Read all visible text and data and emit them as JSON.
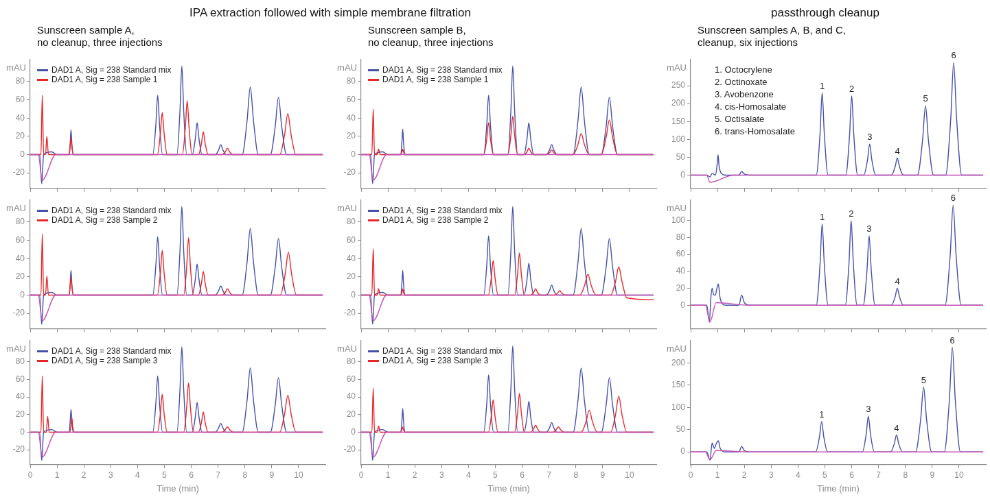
{
  "chart_data": [
    {
      "type": "line",
      "title": "IPA extraction followed with simple membrane filtration",
      "subtitle": "Sunscreen sample A,\nno cleanup, three injections",
      "ylabel": "mAU",
      "xlim": [
        0,
        11
      ],
      "xticks": [
        0,
        1,
        2,
        3,
        4,
        5,
        6,
        7,
        8,
        9,
        10
      ],
      "ylim": [
        -37,
        104
      ],
      "yticks": [
        -20,
        0,
        20,
        40,
        60,
        80
      ],
      "tick_labels": "y",
      "legend": "top left",
      "series": [
        {
          "name": "DAD1 A, Sig = 238 Standard mix",
          "color": "#4450a8",
          "x": [
            0,
            0.35,
            0.43,
            0.5,
            0.8,
            1.0,
            1.45,
            1.49,
            1.52,
            1.55,
            1.6,
            4.57,
            4.68,
            4.75,
            4.82,
            4.93,
            5.47,
            5.58,
            5.65,
            5.72,
            5.83,
            6.04,
            6.15,
            6.22,
            6.29,
            6.4,
            6.9,
            7.02,
            7.1,
            7.18,
            7.3,
            7.9,
            8.08,
            8.2,
            8.32,
            8.5,
            8.95,
            9.13,
            9.25,
            9.37,
            9.55,
            10.9
          ],
          "values": [
            0,
            0,
            -32,
            0,
            3,
            0,
            0,
            13,
            27,
            13,
            0,
            0,
            32,
            65,
            32,
            0,
            0,
            48,
            97,
            48,
            0,
            0,
            17,
            35,
            17,
            0,
            0,
            5,
            11,
            5,
            0,
            0,
            37,
            74,
            37,
            0,
            0,
            31,
            63,
            31,
            0,
            0
          ]
        },
        {
          "name": "DAD1 A, Sig = 238 Sample 1",
          "color": "#e8262a",
          "x": [
            0,
            0.4,
            0.45,
            0.5,
            0.57,
            0.62,
            0.68,
            0.8,
            1.45,
            1.49,
            1.52,
            1.55,
            1.6,
            4.74,
            4.85,
            4.92,
            4.99,
            5.1,
            5.67,
            5.78,
            5.85,
            5.92,
            6.03,
            6.27,
            6.38,
            6.45,
            6.52,
            6.63,
            7.15,
            7.27,
            7.35,
            7.43,
            7.55,
            9.3,
            9.48,
            9.6,
            9.72,
            9.9,
            10.9
          ],
          "values": [
            0,
            0,
            65,
            0,
            0,
            20,
            0,
            0,
            0,
            9,
            19,
            9,
            0,
            0,
            23,
            46,
            23,
            0,
            0,
            29,
            59,
            29,
            0,
            0,
            12,
            25,
            12,
            0,
            0,
            3,
            7,
            3,
            0,
            0,
            22,
            45,
            22,
            0,
            0
          ]
        },
        {
          "color": "#c850b4",
          "x": [
            0,
            0.3,
            0.45,
            0.95,
            10.9
          ],
          "values": [
            0,
            0,
            -28,
            0,
            0
          ]
        }
      ]
    },
    {
      "type": "line",
      "subtitle": "Sunscreen sample B,\nno cleanup, three injections",
      "ylabel": "mAU",
      "xlim": [
        0,
        11
      ],
      "xticks": [
        0,
        1,
        2,
        3,
        4,
        5,
        6,
        7,
        8,
        9,
        10
      ],
      "ylim": [
        -37,
        104
      ],
      "yticks": [
        -20,
        0,
        20,
        40,
        60,
        80
      ],
      "tick_labels": "y",
      "legend": "top left",
      "series": [
        {
          "name": "DAD1 A, Sig = 238 Standard mix",
          "color": "#4450a8",
          "x": [
            0,
            0.35,
            0.43,
            0.5,
            0.8,
            1.0,
            1.48,
            1.52,
            1.55,
            1.58,
            1.63,
            4.57,
            4.68,
            4.75,
            4.82,
            4.93,
            5.47,
            5.58,
            5.65,
            5.72,
            5.83,
            6.07,
            6.18,
            6.25,
            6.32,
            6.43,
            6.9,
            7.02,
            7.1,
            7.18,
            7.3,
            7.9,
            8.08,
            8.2,
            8.32,
            8.5,
            8.95,
            9.13,
            9.25,
            9.37,
            9.55,
            10.9
          ],
          "values": [
            0,
            0,
            -32,
            0,
            3,
            0,
            0,
            14,
            28,
            14,
            0,
            0,
            32,
            65,
            32,
            0,
            0,
            48,
            97,
            48,
            0,
            0,
            17,
            35,
            17,
            0,
            0,
            5,
            11,
            5,
            0,
            0,
            37,
            74,
            37,
            0,
            0,
            31,
            63,
            31,
            0,
            0
          ]
        },
        {
          "name": "DAD1 A, Sig = 238 Sample 1",
          "color": "#e8262a",
          "x": [
            0,
            0.4,
            0.45,
            0.5,
            0.6,
            0.65,
            0.71,
            0.8,
            1.48,
            1.52,
            1.55,
            1.58,
            1.63,
            4.57,
            4.68,
            4.75,
            4.82,
            4.93,
            5.47,
            5.58,
            5.65,
            5.72,
            5.83,
            6.07,
            6.18,
            6.25,
            6.32,
            6.43,
            6.9,
            7.02,
            7.1,
            7.18,
            7.3,
            7.9,
            8.08,
            8.2,
            8.32,
            8.5,
            8.95,
            9.13,
            9.25,
            9.37,
            9.55,
            10.9
          ],
          "values": [
            0,
            0,
            50,
            0,
            0,
            6,
            0,
            0,
            0,
            3,
            6,
            3,
            0,
            0,
            17,
            35,
            17,
            0,
            0,
            21,
            42,
            21,
            0,
            0,
            3,
            7,
            3,
            0,
            0,
            2,
            5,
            2,
            0,
            0,
            11,
            23,
            11,
            0,
            0,
            19,
            38,
            19,
            0,
            0
          ]
        },
        {
          "color": "#c850b4",
          "x": [
            0,
            0.3,
            0.45,
            0.95,
            10.9
          ],
          "values": [
            0,
            0,
            -28,
            0,
            0
          ]
        }
      ]
    },
    {
      "type": "line",
      "title": "passthrough cleanup",
      "subtitle": "Sunscreen samples A, B, and C,\ncleanup, six injections",
      "ylabel": "mAU",
      "xlim": [
        0,
        11
      ],
      "xticks": [
        0,
        1,
        2,
        3,
        4,
        5,
        6,
        7,
        8,
        9,
        10
      ],
      "ylim": [
        -37,
        323
      ],
      "yticks": [
        0,
        50,
        100,
        150,
        200,
        250
      ],
      "tick_labels": "y",
      "annotations": [
        "1. Octocrylene",
        "2. Octinoxate",
        "3. Avobenzone",
        "4. cis-Homosalate",
        "5. Octisalate",
        "6. trans-Homosalate",
        {
          "text": "1",
          "x": 4.9,
          "y": 230
        },
        {
          "text": "2",
          "x": 6.0,
          "y": 222
        },
        {
          "text": "3",
          "x": 6.67,
          "y": 87
        },
        {
          "text": "4",
          "x": 7.7,
          "y": 48
        },
        {
          "text": "5",
          "x": 8.75,
          "y": 194
        },
        {
          "text": "6",
          "x": 9.8,
          "y": 315
        }
      ],
      "series": [
        {
          "color": "#4450a8",
          "x": [
            0,
            0.6,
            0.72,
            0.8,
            0.92,
            0.98,
            1.02,
            1.06,
            1.14,
            1.3,
            1.8,
            1.9,
            2.0,
            2.2,
            4.68,
            4.82,
            4.9,
            4.98,
            5.12,
            5.78,
            5.92,
            6.0,
            6.08,
            6.22,
            6.45,
            6.59,
            6.67,
            6.75,
            6.89,
            7.48,
            7.62,
            7.7,
            7.78,
            7.92,
            8.45,
            8.64,
            8.75,
            8.86,
            9.05,
            9.5,
            9.69,
            9.8,
            9.91,
            10.1,
            10.9
          ],
          "values": [
            0,
            0,
            -5,
            5,
            0,
            25,
            57,
            25,
            5,
            0,
            0,
            10,
            3,
            0,
            0,
            115,
            230,
            115,
            0,
            0,
            111,
            222,
            111,
            0,
            0,
            43,
            87,
            43,
            0,
            0,
            24,
            48,
            24,
            0,
            0,
            97,
            194,
            97,
            0,
            0,
            157,
            315,
            157,
            0,
            0
          ]
        },
        {
          "color": "#c850b4",
          "x": [
            0,
            0.6,
            0.72,
            1.6,
            10.9
          ],
          "values": [
            0,
            0,
            -20,
            0,
            0
          ]
        }
      ]
    },
    {
      "type": "line",
      "ylabel": "mAU",
      "xlim": [
        0,
        11
      ],
      "xticks": [
        0,
        1,
        2,
        3,
        4,
        5,
        6,
        7,
        8,
        9,
        10
      ],
      "ylim": [
        -37,
        104
      ],
      "yticks": [
        -20,
        0,
        20,
        40,
        60,
        80
      ],
      "tick_labels": "y",
      "legend": "top left",
      "series": [
        {
          "name": "DAD1 A, Sig = 238 Standard mix",
          "color": "#4450a8",
          "x": [
            0,
            0.35,
            0.43,
            0.5,
            0.8,
            1.0,
            1.45,
            1.49,
            1.52,
            1.55,
            1.6,
            4.57,
            4.68,
            4.75,
            4.82,
            4.93,
            5.47,
            5.58,
            5.65,
            5.72,
            5.83,
            6.04,
            6.15,
            6.22,
            6.29,
            6.4,
            6.9,
            7.02,
            7.1,
            7.18,
            7.3,
            7.9,
            8.08,
            8.2,
            8.32,
            8.5,
            8.95,
            9.13,
            9.25,
            9.37,
            9.55,
            10.9
          ],
          "values": [
            0,
            0,
            -32,
            0,
            3,
            0,
            0,
            13,
            27,
            13,
            0,
            0,
            32,
            64,
            32,
            0,
            0,
            48,
            97,
            48,
            0,
            0,
            17,
            34,
            17,
            0,
            0,
            5,
            10,
            5,
            0,
            0,
            36,
            73,
            36,
            0,
            0,
            31,
            62,
            31,
            0,
            0
          ]
        },
        {
          "name": "DAD1 A, Sig = 238 Sample 2",
          "color": "#e8262a",
          "x": [
            0,
            0.4,
            0.45,
            0.5,
            0.57,
            0.62,
            0.68,
            0.8,
            1.45,
            1.49,
            1.52,
            1.55,
            1.6,
            4.74,
            4.85,
            4.92,
            4.99,
            5.1,
            5.72,
            5.83,
            5.9,
            5.97,
            6.08,
            6.27,
            6.38,
            6.45,
            6.52,
            6.63,
            7.15,
            7.27,
            7.35,
            7.43,
            7.55,
            9.32,
            9.5,
            9.62,
            9.74,
            9.92,
            10.9
          ],
          "values": [
            0,
            0,
            67,
            0,
            0,
            21,
            0,
            0,
            0,
            10,
            20,
            10,
            0,
            0,
            24,
            49,
            24,
            0,
            0,
            31,
            63,
            31,
            0,
            0,
            13,
            26,
            13,
            0,
            0,
            3,
            7,
            3,
            0,
            0,
            23,
            47,
            23,
            0,
            0
          ]
        },
        {
          "color": "#c850b4",
          "x": [
            0,
            0.3,
            0.45,
            0.95,
            10.9
          ],
          "values": [
            0,
            0,
            -28,
            0,
            0
          ]
        }
      ]
    },
    {
      "type": "line",
      "ylabel": "mAU",
      "xlim": [
        0,
        11
      ],
      "xticks": [
        0,
        1,
        2,
        3,
        4,
        5,
        6,
        7,
        8,
        9,
        10
      ],
      "ylim": [
        -37,
        104
      ],
      "yticks": [
        -20,
        0,
        20,
        40,
        60,
        80
      ],
      "tick_labels": "y",
      "legend": "top left",
      "series": [
        {
          "name": "DAD1 A, Sig = 238 Standard mix",
          "color": "#4450a8",
          "x": [
            0,
            0.35,
            0.43,
            0.5,
            0.8,
            1.0,
            1.48,
            1.52,
            1.55,
            1.58,
            1.63,
            4.57,
            4.68,
            4.75,
            4.82,
            4.93,
            5.47,
            5.58,
            5.65,
            5.72,
            5.83,
            6.07,
            6.18,
            6.25,
            6.32,
            6.43,
            6.9,
            7.02,
            7.1,
            7.18,
            7.3,
            7.9,
            8.08,
            8.2,
            8.32,
            8.5,
            8.95,
            9.13,
            9.25,
            9.37,
            9.55,
            10.9
          ],
          "values": [
            0,
            0,
            -32,
            0,
            3,
            0,
            0,
            13,
            27,
            13,
            0,
            0,
            32,
            65,
            32,
            0,
            0,
            48,
            97,
            48,
            0,
            0,
            17,
            35,
            17,
            0,
            0,
            5,
            11,
            5,
            0,
            0,
            36,
            73,
            36,
            0,
            0,
            31,
            62,
            31,
            0,
            0
          ]
        },
        {
          "name": "DAD1 A, Sig = 238 Sample 2",
          "color": "#e8262a",
          "x": [
            0,
            0.4,
            0.45,
            0.5,
            0.6,
            0.65,
            0.71,
            0.8,
            1.48,
            1.52,
            1.55,
            1.58,
            1.63,
            4.74,
            4.85,
            4.92,
            4.99,
            5.1,
            5.72,
            5.83,
            5.9,
            5.97,
            6.08,
            6.32,
            6.43,
            6.5,
            6.57,
            6.68,
            7.2,
            7.32,
            7.4,
            7.48,
            7.6,
            8.15,
            8.33,
            8.45,
            8.57,
            8.75,
            9.3,
            9.48,
            9.6,
            9.72,
            9.9,
            10.9
          ],
          "values": [
            0,
            0,
            51,
            0,
            0,
            7,
            0,
            0,
            0,
            3,
            7,
            3,
            0,
            0,
            19,
            38,
            19,
            0,
            0,
            23,
            46,
            23,
            0,
            0,
            3,
            7,
            3,
            0,
            0,
            2,
            5,
            2,
            0,
            0,
            11,
            23,
            11,
            0,
            0,
            15,
            31,
            15,
            -3,
            -5
          ]
        },
        {
          "color": "#c850b4",
          "x": [
            0,
            0.3,
            0.45,
            0.95,
            10.9
          ],
          "values": [
            0,
            0,
            -28,
            0,
            0
          ]
        }
      ]
    },
    {
      "type": "line",
      "ylabel": "mAU",
      "xlim": [
        0,
        11
      ],
      "xticks": [
        0,
        1,
        2,
        3,
        4,
        5,
        6,
        7,
        8,
        9,
        10
      ],
      "ylim": [
        -28,
        124
      ],
      "yticks": [
        0,
        20,
        40,
        60,
        80,
        100
      ],
      "tick_labels": "y",
      "annotations": [
        {
          "text": "1",
          "x": 4.9,
          "y": 96
        },
        {
          "text": "2",
          "x": 5.98,
          "y": 100
        },
        {
          "text": "3",
          "x": 6.65,
          "y": 82
        },
        {
          "text": "4",
          "x": 7.7,
          "y": 20
        },
        {
          "text": "6",
          "x": 9.78,
          "y": 118
        }
      ],
      "series": [
        {
          "color": "#4450a8",
          "x": [
            0,
            0.6,
            0.7,
            0.75,
            0.8,
            0.86,
            0.92,
            0.98,
            1.03,
            1.1,
            1.3,
            1.8,
            1.9,
            2.0,
            2.2,
            4.68,
            4.82,
            4.9,
            4.98,
            5.12,
            5.76,
            5.9,
            5.98,
            6.06,
            6.2,
            6.43,
            6.57,
            6.65,
            6.73,
            6.87,
            7.48,
            7.62,
            7.7,
            7.78,
            7.92,
            9.48,
            9.67,
            9.78,
            9.89,
            10.08,
            10.9
          ],
          "values": [
            0,
            0,
            -20,
            8,
            20,
            12,
            12,
            20,
            25,
            8,
            0,
            0,
            12,
            3,
            0,
            0,
            48,
            96,
            48,
            0,
            0,
            50,
            100,
            50,
            0,
            0,
            41,
            82,
            41,
            0,
            0,
            10,
            20,
            10,
            0,
            0,
            59,
            118,
            59,
            0,
            0
          ]
        },
        {
          "color": "#c850b4",
          "x": [
            0,
            0.55,
            0.72,
            0.95,
            2.2,
            10.9
          ],
          "values": [
            0,
            0,
            -20,
            3,
            0,
            0
          ]
        }
      ]
    },
    {
      "type": "line",
      "ylabel": "mAU",
      "xlabel": "Time (min)",
      "xlim": [
        0,
        11
      ],
      "xticks": [
        0,
        1,
        2,
        3,
        4,
        5,
        6,
        7,
        8,
        9,
        10
      ],
      "ylim": [
        -37,
        104
      ],
      "yticks": [
        -20,
        0,
        20,
        40,
        60,
        80
      ],
      "legend": "top left",
      "series": [
        {
          "name": "DAD1 A, Sig = 238 Standard mix",
          "color": "#4450a8",
          "x": [
            0,
            0.35,
            0.43,
            0.5,
            0.8,
            1.0,
            1.45,
            1.49,
            1.52,
            1.55,
            1.6,
            4.57,
            4.68,
            4.75,
            4.82,
            4.93,
            5.47,
            5.58,
            5.65,
            5.72,
            5.83,
            6.04,
            6.15,
            6.22,
            6.29,
            6.4,
            6.9,
            7.02,
            7.1,
            7.18,
            7.3,
            7.9,
            8.08,
            8.2,
            8.32,
            8.5,
            8.95,
            9.13,
            9.25,
            9.37,
            9.55,
            10.9
          ],
          "values": [
            0,
            0,
            -32,
            0,
            3,
            0,
            0,
            13,
            26,
            13,
            0,
            0,
            32,
            64,
            32,
            0,
            0,
            48,
            97,
            48,
            0,
            0,
            17,
            34,
            17,
            0,
            0,
            5,
            10,
            5,
            0,
            0,
            36,
            73,
            36,
            0,
            0,
            31,
            62,
            31,
            0,
            0
          ]
        },
        {
          "name": "DAD1 A, Sig = 238 Sample 3",
          "color": "#e8262a",
          "x": [
            0,
            0.4,
            0.45,
            0.5,
            0.6,
            0.65,
            0.71,
            0.8,
            1.48,
            1.52,
            1.55,
            1.58,
            1.63,
            4.74,
            4.85,
            4.92,
            4.99,
            5.1,
            5.72,
            5.83,
            5.9,
            5.97,
            6.08,
            6.27,
            6.38,
            6.45,
            6.52,
            6.63,
            7.15,
            7.27,
            7.35,
            7.43,
            7.55,
            9.3,
            9.48,
            9.6,
            9.72,
            9.9,
            10.9
          ],
          "values": [
            0,
            0,
            64,
            0,
            0,
            18,
            0,
            0,
            0,
            8,
            17,
            8,
            0,
            0,
            21,
            43,
            21,
            0,
            0,
            28,
            56,
            28,
            0,
            0,
            11,
            23,
            11,
            0,
            0,
            3,
            6,
            3,
            0,
            0,
            21,
            42,
            21,
            0,
            0
          ]
        },
        {
          "color": "#c850b4",
          "x": [
            0,
            0.3,
            0.45,
            0.95,
            10.9
          ],
          "values": [
            0,
            0,
            -28,
            0,
            0
          ]
        }
      ]
    },
    {
      "type": "line",
      "ylabel": "mAU",
      "xlabel": "Time (min)",
      "xlim": [
        0,
        11
      ],
      "xticks": [
        0,
        1,
        2,
        3,
        4,
        5,
        6,
        7,
        8,
        9,
        10
      ],
      "ylim": [
        -37,
        104
      ],
      "yticks": [
        -20,
        0,
        20,
        40,
        60,
        80
      ],
      "legend": "top left",
      "series": [
        {
          "name": "DAD1 A, Sig = 238 Standard mix",
          "color": "#4450a8",
          "x": [
            0,
            0.35,
            0.43,
            0.5,
            0.8,
            1.0,
            1.48,
            1.52,
            1.55,
            1.58,
            1.63,
            4.57,
            4.68,
            4.75,
            4.82,
            4.93,
            5.47,
            5.58,
            5.65,
            5.72,
            5.83,
            6.07,
            6.18,
            6.25,
            6.32,
            6.43,
            6.9,
            7.02,
            7.1,
            7.18,
            7.3,
            7.9,
            8.08,
            8.2,
            8.32,
            8.5,
            8.95,
            9.13,
            9.25,
            9.37,
            9.55,
            10.9
          ],
          "values": [
            0,
            0,
            -32,
            0,
            3,
            0,
            0,
            13,
            27,
            13,
            0,
            0,
            32,
            65,
            32,
            0,
            0,
            49,
            98,
            49,
            0,
            0,
            17,
            35,
            17,
            0,
            0,
            5,
            11,
            5,
            0,
            0,
            36,
            73,
            36,
            0,
            0,
            31,
            62,
            31,
            0,
            0
          ]
        },
        {
          "name": "DAD1 A, Sig = 238 Sample 3",
          "color": "#e8262a",
          "x": [
            0,
            0.4,
            0.45,
            0.5,
            0.6,
            0.65,
            0.71,
            0.8,
            1.48,
            1.52,
            1.55,
            1.58,
            1.63,
            4.74,
            4.85,
            4.92,
            4.99,
            5.1,
            5.72,
            5.83,
            5.9,
            5.97,
            6.08,
            6.32,
            6.43,
            6.5,
            6.57,
            6.68,
            7.15,
            7.27,
            7.35,
            7.43,
            7.55,
            8.2,
            8.38,
            8.5,
            8.62,
            8.8,
            9.3,
            9.48,
            9.6,
            9.72,
            9.9,
            10.9
          ],
          "values": [
            0,
            0,
            50,
            0,
            0,
            7,
            0,
            0,
            0,
            3,
            6,
            3,
            0,
            0,
            18,
            37,
            18,
            0,
            0,
            22,
            44,
            22,
            0,
            0,
            4,
            8,
            4,
            0,
            0,
            3,
            6,
            3,
            0,
            0,
            12,
            25,
            12,
            0,
            0,
            20,
            41,
            20,
            0,
            0
          ]
        },
        {
          "color": "#c850b4",
          "x": [
            0,
            0.3,
            0.45,
            0.95,
            10.9
          ],
          "values": [
            0,
            0,
            -28,
            0,
            0
          ]
        }
      ]
    },
    {
      "type": "line",
      "ylabel": "mAU",
      "xlabel": "Time (min)",
      "xlim": [
        0,
        11
      ],
      "xticks": [
        0,
        1,
        2,
        3,
        4,
        5,
        6,
        7,
        8,
        9,
        10
      ],
      "ylim": [
        -29,
        250
      ],
      "yticks": [
        0,
        50,
        100,
        150,
        200
      ],
      "annotations": [
        {
          "text": "1",
          "x": 4.88,
          "y": 68
        },
        {
          "text": "3",
          "x": 6.62,
          "y": 80
        },
        {
          "text": "4",
          "x": 7.67,
          "y": 38
        },
        {
          "text": "5",
          "x": 8.68,
          "y": 146
        },
        {
          "text": "6",
          "x": 9.75,
          "y": 235
        }
      ],
      "series": [
        {
          "color": "#4450a8",
          "x": [
            0,
            0.6,
            0.72,
            0.8,
            0.88,
            0.95,
            1.03,
            1.1,
            1.3,
            1.8,
            1.9,
            2.0,
            2.2,
            4.66,
            4.8,
            4.88,
            4.96,
            5.1,
            6.4,
            6.54,
            6.62,
            6.7,
            6.84,
            7.45,
            7.59,
            7.67,
            7.75,
            7.89,
            8.38,
            8.57,
            8.68,
            8.79,
            8.98,
            9.45,
            9.64,
            9.75,
            9.86,
            10.05,
            10.9
          ],
          "values": [
            0,
            0,
            -18,
            20,
            8,
            18,
            25,
            8,
            0,
            0,
            12,
            3,
            0,
            0,
            34,
            68,
            34,
            0,
            0,
            40,
            80,
            40,
            0,
            0,
            19,
            38,
            19,
            0,
            0,
            73,
            146,
            73,
            0,
            0,
            117,
            235,
            117,
            0,
            0
          ]
        },
        {
          "color": "#c850b4",
          "x": [
            0,
            0.55,
            0.72,
            0.95,
            2.2,
            10.9
          ],
          "values": [
            0,
            0,
            -18,
            3,
            0,
            0
          ]
        }
      ]
    }
  ]
}
